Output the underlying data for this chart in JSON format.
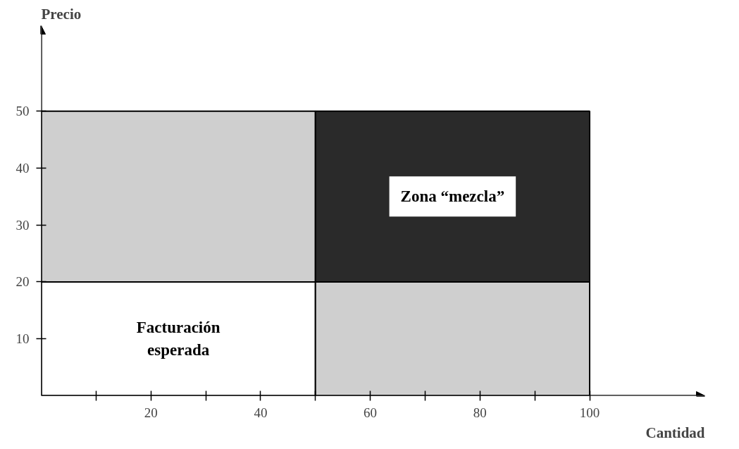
{
  "chart_data": {
    "type": "bar",
    "xlabel": "Cantidad",
    "ylabel": "Precio",
    "stacked": true,
    "x": [
      25,
      75
    ],
    "series": [
      {
        "colors": [
          "#ffffff",
          "#cfcfcf"
        ],
        "values": [
          20,
          20
        ]
      },
      {
        "colors": [
          "#cfcfcf",
          "#2a2a2a"
        ],
        "values": [
          30,
          30
        ]
      }
    ],
    "xlim": [
      0,
      121
    ],
    "ylim": [
      0,
      65
    ],
    "xticks": [
      {
        "value": 10,
        "label": null
      },
      20,
      {
        "value": 30,
        "label": null
      },
      40,
      {
        "value": 50,
        "label": null
      },
      60,
      {
        "value": 70,
        "label": null
      },
      80,
      {
        "value": 90,
        "label": null
      },
      100
    ],
    "yticks": [
      10,
      20,
      30,
      40,
      50
    ],
    "grid": false,
    "annotations": [
      "Facturación\nesperada",
      "Zona “mezcla”"
    ]
  }
}
